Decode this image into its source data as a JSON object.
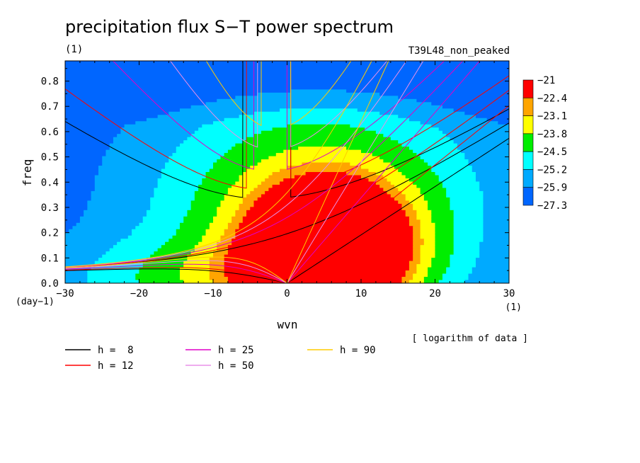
{
  "chart_data": {
    "type": "heatmap",
    "title": "precipitation flux S−T power spectrum",
    "title_unit": "(1)",
    "subtitle": "T39L48_non_peaked",
    "xlabel": "wvn",
    "ylabel": "freq",
    "x_unit": "(1)",
    "y_unit": "(day−1)",
    "xlim": [
      -30,
      30
    ],
    "ylim": [
      0,
      0.88
    ],
    "x_ticks": [
      -30,
      -20,
      -10,
      0,
      10,
      20,
      30
    ],
    "x_tick_labels": [
      "−30",
      "−20",
      "−10",
      "0",
      "10",
      "20",
      "30"
    ],
    "y_ticks": [
      0,
      0.1,
      0.2,
      0.3,
      0.4,
      0.5,
      0.6,
      0.7,
      0.8
    ],
    "y_tick_labels": [
      "0.0",
      "0.1",
      "0.2",
      "0.3",
      "0.4",
      "0.5",
      "0.6",
      "0.7",
      "0.8"
    ],
    "note": "[ logarithm of data ]",
    "colorbar": {
      "levels": [
        "−21",
        "−22.4",
        "−23.1",
        "−23.8",
        "−24.5",
        "−25.2",
        "−25.9",
        "−27.3"
      ],
      "colors": [
        "#ff0000",
        "#ffa500",
        "#ffff00",
        "#00ee00",
        "#00ffff",
        "#00aaff",
        "#0066ff"
      ]
    },
    "shading": {
      "min": 0.06,
      "max": 0.93,
      "band_edges": [
        0.2,
        0.35,
        0.5,
        0.65,
        0.78,
        0.88
      ],
      "band_colors": [
        "#0066ff",
        "#00aaff",
        "#00ffff",
        "#00ee00",
        "#ffff00",
        "#ffa500",
        "#ff0000"
      ]
    },
    "dispersion_curves": [
      {
        "name": "h = 8",
        "h": 8,
        "color": "#000000"
      },
      {
        "name": "h = 12",
        "h": 12,
        "color": "#ff0000"
      },
      {
        "name": "h = 25",
        "h": 25,
        "color": "#e000c8"
      },
      {
        "name": "h = 50",
        "h": 50,
        "color": "#e890e8"
      },
      {
        "name": "h = 90",
        "h": 90,
        "color": "#ffcc00"
      }
    ],
    "legend_labels": [
      "h =  8",
      "h = 12",
      "h = 25",
      "h = 50",
      "h = 90"
    ]
  }
}
